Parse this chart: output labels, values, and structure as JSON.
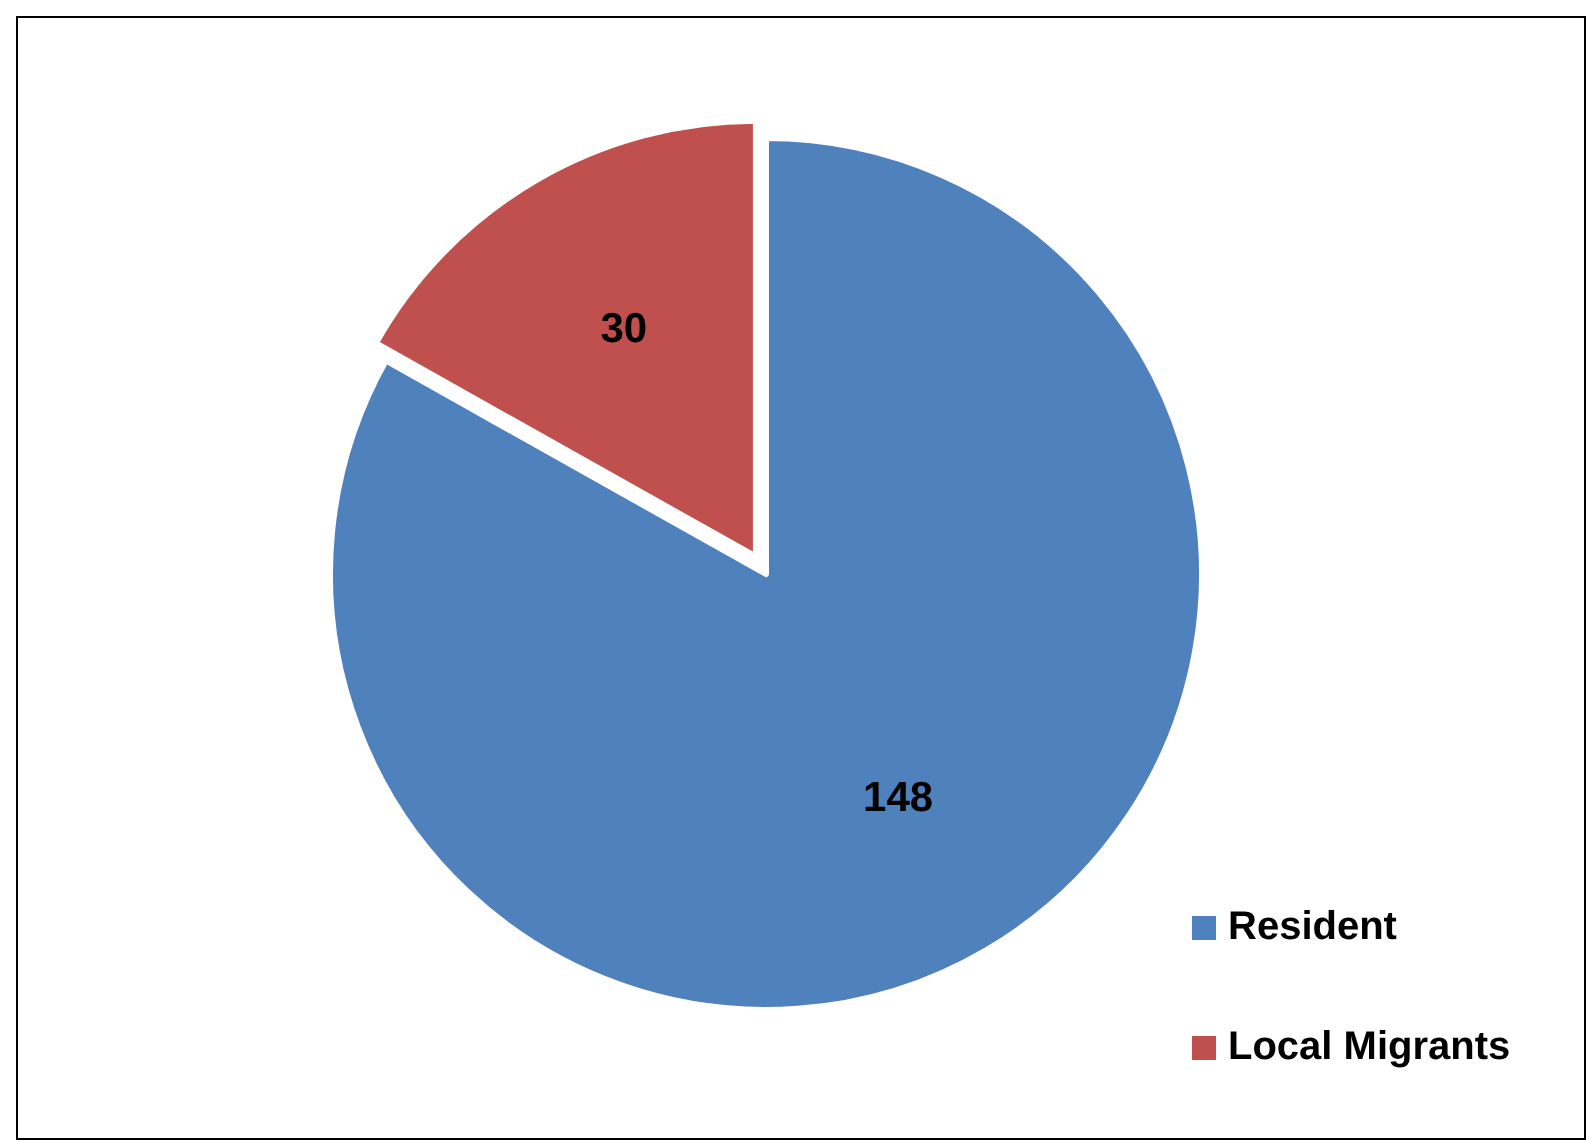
{
  "chart_data": {
    "type": "pie",
    "categories": [
      "Resident",
      "Local Migrants"
    ],
    "values": [
      148,
      30
    ],
    "colors": [
      "#4f81bd",
      "#c0504d"
    ],
    "data_labels": true,
    "legend": "bottom right"
  }
}
